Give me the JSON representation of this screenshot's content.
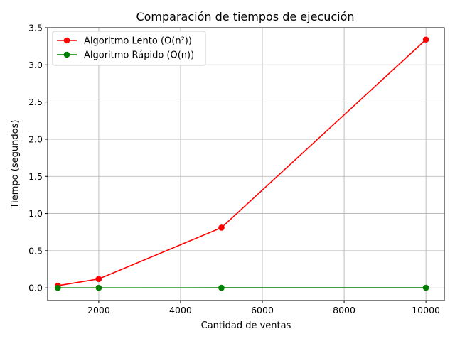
{
  "chart_data": {
    "type": "line",
    "title": "Comparación de tiempos de ejecución",
    "xlabel": "Cantidad de ventas",
    "ylabel": "Tiempo (segundos)",
    "xlim": [
      750,
      10450
    ],
    "ylim": [
      -0.17,
      3.5
    ],
    "xticks": [
      2000,
      4000,
      6000,
      8000,
      10000
    ],
    "xtick_labels": [
      "2000",
      "4000",
      "6000",
      "8000",
      "10000"
    ],
    "yticks": [
      0.0,
      0.5,
      1.0,
      1.5,
      2.0,
      2.5,
      3.0,
      3.5
    ],
    "ytick_labels": [
      "0.0",
      "0.5",
      "1.0",
      "1.5",
      "2.0",
      "2.5",
      "3.0",
      "3.5"
    ],
    "grid": true,
    "legend_position": "top-left",
    "x": [
      1000,
      2000,
      5000,
      10000
    ],
    "series": [
      {
        "name": "Algoritmo Lento (O(n²))",
        "color": "#ff0000",
        "marker": "circle",
        "values": [
          0.03,
          0.12,
          0.81,
          3.34
        ]
      },
      {
        "name": "Algoritmo Rápido (O(n))",
        "color": "#008000",
        "marker": "circle",
        "values": [
          0.0002,
          0.0004,
          0.001,
          0.0015
        ]
      }
    ]
  }
}
